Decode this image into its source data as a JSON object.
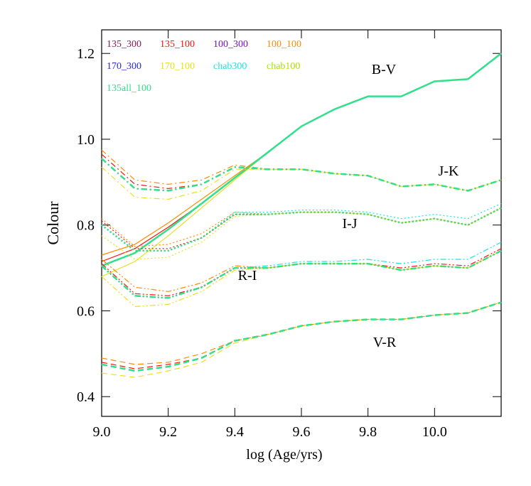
{
  "chart_data": {
    "type": "line",
    "xlabel": "log (Age/yrs)",
    "ylabel": "Colour",
    "x": [
      9.0,
      9.1,
      9.2,
      9.3,
      9.4,
      9.5,
      9.6,
      9.7,
      9.8,
      9.9,
      10.0,
      10.1,
      10.2
    ],
    "xlim": [
      9.0,
      10.2
    ],
    "ylim": [
      0.354,
      1.255
    ],
    "xticks": [
      {
        "value": 9,
        "label": "9.0"
      },
      9.2,
      9.4,
      9.6,
      9.8,
      {
        "value": 10,
        "label": "10.0"
      }
    ],
    "yticks": [
      0.4,
      0.6,
      0.8,
      {
        "value": 1,
        "label": "1.0"
      },
      1.2
    ],
    "series": [
      {
        "name": "135_300",
        "color": "#8b1a5a"
      },
      {
        "name": "135_100",
        "color": "#ff1010"
      },
      {
        "name": "100_300",
        "color": "#7a10c0"
      },
      {
        "name": "100_100",
        "color": "#ff8c00"
      },
      {
        "name": "170_300",
        "color": "#2828d8"
      },
      {
        "name": "170_100",
        "color": "#e8e020"
      },
      {
        "name": "chab300",
        "color": "#20e0e0"
      },
      {
        "name": "chab100",
        "color": "#a8e000"
      },
      {
        "name": "135all_100",
        "color": "#30e08a"
      }
    ],
    "groups": [
      {
        "label": "B-V",
        "linestyle": "solid",
        "values": [
          [
            0.705,
            0.735,
            0.79,
            0.85,
            0.91,
            0.97,
            1.03,
            1.07,
            1.1,
            1.1,
            1.135,
            1.14,
            1.2
          ],
          [
            0.715,
            0.745,
            0.795,
            0.85,
            0.91,
            0.97,
            1.03,
            1.07,
            1.1,
            1.1,
            1.135,
            1.14,
            1.2
          ],
          [
            0.705,
            0.735,
            0.79,
            0.85,
            0.91,
            0.97,
            1.03,
            1.07,
            1.1,
            1.1,
            1.135,
            1.14,
            1.2
          ],
          [
            0.73,
            0.755,
            0.805,
            0.86,
            0.915,
            0.97,
            1.03,
            1.07,
            1.1,
            1.1,
            1.135,
            1.14,
            1.2
          ],
          [
            0.705,
            0.735,
            0.79,
            0.85,
            0.91,
            0.97,
            1.03,
            1.07,
            1.1,
            1.1,
            1.135,
            1.14,
            1.2
          ],
          [
            0.68,
            0.715,
            0.775,
            0.84,
            0.905,
            0.97,
            1.03,
            1.07,
            1.1,
            1.1,
            1.135,
            1.14,
            1.2
          ],
          [
            0.705,
            0.735,
            0.79,
            0.85,
            0.91,
            0.97,
            1.03,
            1.07,
            1.1,
            1.1,
            1.135,
            1.14,
            1.2
          ],
          [
            0.705,
            0.735,
            0.79,
            0.85,
            0.91,
            0.97,
            1.03,
            1.07,
            1.1,
            1.1,
            1.135,
            1.14,
            1.2
          ],
          [
            0.705,
            0.735,
            0.79,
            0.85,
            0.91,
            0.97,
            1.03,
            1.07,
            1.1,
            1.1,
            1.135,
            1.14,
            1.2
          ]
        ]
      },
      {
        "label": "J-K",
        "linestyle": "dashdot",
        "values": [
          [
            0.955,
            0.885,
            0.88,
            0.895,
            0.935,
            0.93,
            0.93,
            0.92,
            0.915,
            0.89,
            0.895,
            0.88,
            0.905
          ],
          [
            0.965,
            0.895,
            0.885,
            0.895,
            0.935,
            0.93,
            0.93,
            0.92,
            0.915,
            0.89,
            0.895,
            0.88,
            0.905
          ],
          [
            0.955,
            0.885,
            0.88,
            0.895,
            0.935,
            0.93,
            0.93,
            0.92,
            0.915,
            0.89,
            0.895,
            0.88,
            0.905
          ],
          [
            0.975,
            0.905,
            0.895,
            0.905,
            0.94,
            0.93,
            0.93,
            0.92,
            0.915,
            0.89,
            0.895,
            0.88,
            0.905
          ],
          [
            0.955,
            0.885,
            0.88,
            0.895,
            0.935,
            0.93,
            0.93,
            0.92,
            0.915,
            0.89,
            0.895,
            0.88,
            0.905
          ],
          [
            0.935,
            0.865,
            0.86,
            0.88,
            0.93,
            0.93,
            0.93,
            0.92,
            0.915,
            0.89,
            0.895,
            0.88,
            0.905
          ],
          [
            0.955,
            0.885,
            0.88,
            0.895,
            0.935,
            0.93,
            0.93,
            0.92,
            0.915,
            0.89,
            0.895,
            0.88,
            0.905
          ],
          [
            0.955,
            0.885,
            0.88,
            0.895,
            0.935,
            0.93,
            0.93,
            0.92,
            0.915,
            0.89,
            0.895,
            0.88,
            0.905
          ],
          [
            0.955,
            0.885,
            0.88,
            0.895,
            0.935,
            0.93,
            0.93,
            0.92,
            0.915,
            0.89,
            0.895,
            0.88,
            0.905
          ]
        ]
      },
      {
        "label": "I-J",
        "linestyle": "dotted",
        "values": [
          [
            0.8,
            0.74,
            0.74,
            0.77,
            0.825,
            0.825,
            0.83,
            0.83,
            0.825,
            0.805,
            0.815,
            0.8,
            0.84
          ],
          [
            0.81,
            0.745,
            0.745,
            0.77,
            0.825,
            0.825,
            0.83,
            0.83,
            0.825,
            0.805,
            0.815,
            0.8,
            0.84
          ],
          [
            0.8,
            0.74,
            0.74,
            0.77,
            0.825,
            0.825,
            0.83,
            0.83,
            0.825,
            0.805,
            0.815,
            0.8,
            0.84
          ],
          [
            0.815,
            0.75,
            0.755,
            0.78,
            0.83,
            0.825,
            0.83,
            0.83,
            0.825,
            0.805,
            0.815,
            0.8,
            0.84
          ],
          [
            0.8,
            0.74,
            0.74,
            0.77,
            0.825,
            0.825,
            0.83,
            0.83,
            0.825,
            0.805,
            0.815,
            0.8,
            0.84
          ],
          [
            0.775,
            0.72,
            0.725,
            0.76,
            0.82,
            0.825,
            0.83,
            0.83,
            0.825,
            0.805,
            0.815,
            0.8,
            0.84
          ],
          [
            0.8,
            0.74,
            0.74,
            0.77,
            0.83,
            0.83,
            0.835,
            0.835,
            0.83,
            0.815,
            0.825,
            0.815,
            0.85
          ],
          [
            0.8,
            0.74,
            0.74,
            0.77,
            0.825,
            0.825,
            0.83,
            0.83,
            0.825,
            0.805,
            0.815,
            0.8,
            0.84
          ],
          [
            0.8,
            0.74,
            0.74,
            0.77,
            0.825,
            0.825,
            0.83,
            0.83,
            0.825,
            0.805,
            0.815,
            0.8,
            0.84
          ]
        ]
      },
      {
        "label": "R-I",
        "linestyle": "dashdotdot",
        "values": [
          [
            0.705,
            0.635,
            0.63,
            0.655,
            0.7,
            0.7,
            0.71,
            0.71,
            0.71,
            0.695,
            0.705,
            0.7,
            0.74
          ],
          [
            0.71,
            0.64,
            0.635,
            0.655,
            0.7,
            0.7,
            0.71,
            0.71,
            0.71,
            0.7,
            0.71,
            0.705,
            0.745
          ],
          [
            0.705,
            0.635,
            0.63,
            0.655,
            0.7,
            0.7,
            0.71,
            0.71,
            0.71,
            0.695,
            0.705,
            0.7,
            0.74
          ],
          [
            0.72,
            0.655,
            0.645,
            0.665,
            0.705,
            0.7,
            0.71,
            0.71,
            0.71,
            0.695,
            0.705,
            0.7,
            0.74
          ],
          [
            0.705,
            0.635,
            0.63,
            0.655,
            0.7,
            0.7,
            0.71,
            0.71,
            0.71,
            0.695,
            0.705,
            0.7,
            0.74
          ],
          [
            0.68,
            0.61,
            0.615,
            0.645,
            0.695,
            0.7,
            0.71,
            0.71,
            0.71,
            0.695,
            0.705,
            0.7,
            0.74
          ],
          [
            0.705,
            0.635,
            0.63,
            0.655,
            0.7,
            0.705,
            0.715,
            0.715,
            0.72,
            0.71,
            0.72,
            0.72,
            0.76
          ],
          [
            0.705,
            0.635,
            0.63,
            0.655,
            0.7,
            0.7,
            0.71,
            0.71,
            0.71,
            0.695,
            0.705,
            0.7,
            0.74
          ],
          [
            0.705,
            0.635,
            0.63,
            0.655,
            0.7,
            0.7,
            0.71,
            0.71,
            0.71,
            0.695,
            0.705,
            0.7,
            0.74
          ]
        ]
      },
      {
        "label": "V-R",
        "linestyle": "dashed",
        "values": [
          [
            0.475,
            0.46,
            0.47,
            0.49,
            0.53,
            0.545,
            0.565,
            0.575,
            0.58,
            0.58,
            0.59,
            0.595,
            0.62
          ],
          [
            0.48,
            0.465,
            0.475,
            0.49,
            0.53,
            0.545,
            0.565,
            0.575,
            0.58,
            0.58,
            0.59,
            0.595,
            0.62
          ],
          [
            0.475,
            0.46,
            0.47,
            0.49,
            0.53,
            0.545,
            0.565,
            0.575,
            0.58,
            0.58,
            0.59,
            0.595,
            0.62
          ],
          [
            0.49,
            0.475,
            0.48,
            0.5,
            0.53,
            0.545,
            0.565,
            0.575,
            0.58,
            0.58,
            0.59,
            0.595,
            0.62
          ],
          [
            0.475,
            0.46,
            0.47,
            0.49,
            0.53,
            0.545,
            0.565,
            0.575,
            0.58,
            0.58,
            0.59,
            0.595,
            0.62
          ],
          [
            0.455,
            0.445,
            0.46,
            0.48,
            0.525,
            0.545,
            0.565,
            0.575,
            0.58,
            0.58,
            0.59,
            0.595,
            0.62
          ],
          [
            0.475,
            0.46,
            0.47,
            0.49,
            0.53,
            0.545,
            0.565,
            0.575,
            0.58,
            0.58,
            0.59,
            0.595,
            0.62
          ],
          [
            0.475,
            0.46,
            0.47,
            0.49,
            0.53,
            0.545,
            0.565,
            0.575,
            0.58,
            0.58,
            0.59,
            0.595,
            0.62
          ],
          [
            0.475,
            0.46,
            0.47,
            0.49,
            0.53,
            0.545,
            0.565,
            0.575,
            0.58,
            0.58,
            0.59,
            0.595,
            0.62
          ]
        ]
      }
    ]
  }
}
